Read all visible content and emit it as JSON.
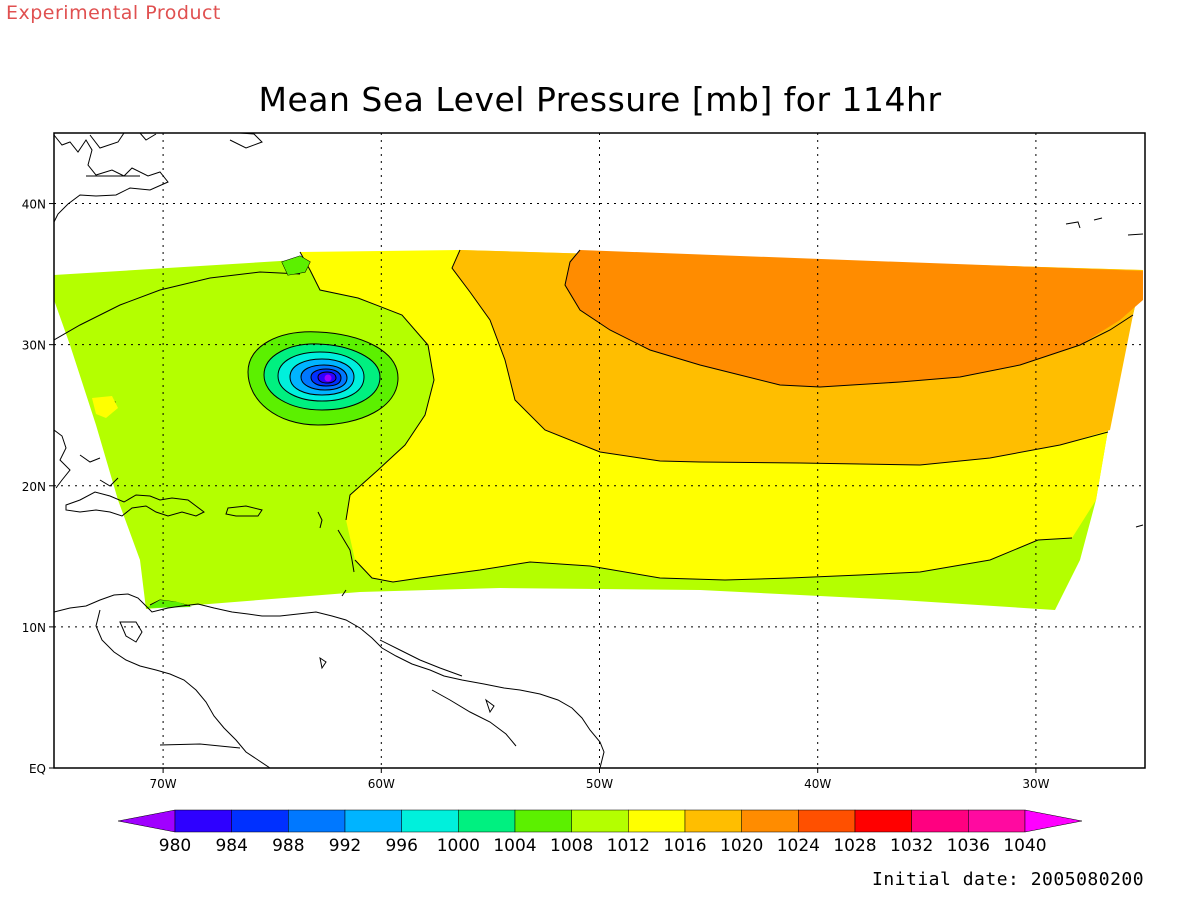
{
  "header": {
    "product_note": "Experimental Product",
    "title": "Mean Sea Level Pressure [mb] for 114hr"
  },
  "footer": {
    "initial_date": "Initial date: 2005080200"
  },
  "map": {
    "lon_range": [
      -75,
      -25
    ],
    "lat_range": [
      0,
      45
    ],
    "lon_ticks": [
      {
        "value": -70,
        "label": "70W"
      },
      {
        "value": -60,
        "label": "60W"
      },
      {
        "value": -50,
        "label": "50W"
      },
      {
        "value": -40,
        "label": "40W"
      },
      {
        "value": -30,
        "label": "30W"
      }
    ],
    "lat_ticks": [
      {
        "value": 0,
        "label": "EQ"
      },
      {
        "value": 10,
        "label": "10N"
      },
      {
        "value": 20,
        "label": "20N"
      },
      {
        "value": 30,
        "label": "30N"
      },
      {
        "value": 40,
        "label": "40N"
      }
    ],
    "grid": "dotted",
    "low_center": {
      "lon": -62.4,
      "lat": 27.6
    }
  },
  "colorbar": {
    "labels": [
      "980",
      "984",
      "988",
      "992",
      "996",
      "1000",
      "1004",
      "1008",
      "1012",
      "1016",
      "1020",
      "1024",
      "1028",
      "1032",
      "1036",
      "1040"
    ],
    "colors": [
      "#a000ff",
      "#2e00ff",
      "#0030ff",
      "#0078ff",
      "#00b4ff",
      "#00f0dc",
      "#00f080",
      "#5cf000",
      "#b4ff00",
      "#ffff00",
      "#ffbe00",
      "#ff8c00",
      "#ff5000",
      "#ff0000",
      "#ff0080",
      "#ff0aa0",
      "#ff00ff"
    ]
  }
}
